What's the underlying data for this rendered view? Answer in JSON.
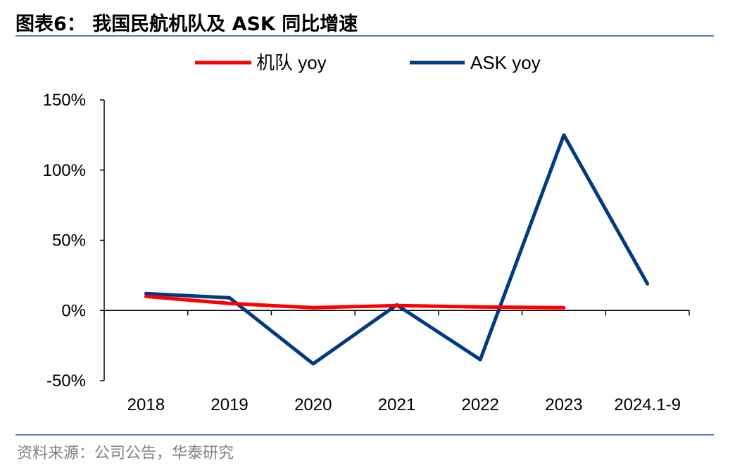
{
  "header": {
    "title": "图表6： 我国民航机队及 ASK 同比增速"
  },
  "footer": {
    "source": "资料来源：公司公告，华泰研究"
  },
  "chart_data": {
    "type": "line",
    "categories": [
      "2018",
      "2019",
      "2020",
      "2021",
      "2022",
      "2023",
      "2024.1-9"
    ],
    "ylim": [
      -0.5,
      1.5
    ],
    "yticks": [
      {
        "value": 1.5,
        "label": "150%"
      },
      {
        "value": 1.0,
        "label": "100%"
      },
      {
        "value": 0.5,
        "label": "50%"
      },
      {
        "value": 0.0,
        "label": "0%"
      },
      {
        "value": -0.5,
        "label": "-50%"
      }
    ],
    "grid": false,
    "legend_position": "top",
    "series": [
      {
        "name": "机队 yoy",
        "color": "#ff0000",
        "values": [
          0.1,
          0.05,
          0.02,
          0.035,
          0.025,
          0.02,
          null
        ]
      },
      {
        "name": "ASK yoy",
        "color": "#003a80",
        "values": [
          0.12,
          0.09,
          -0.38,
          0.04,
          -0.35,
          1.25,
          0.19
        ]
      }
    ]
  }
}
